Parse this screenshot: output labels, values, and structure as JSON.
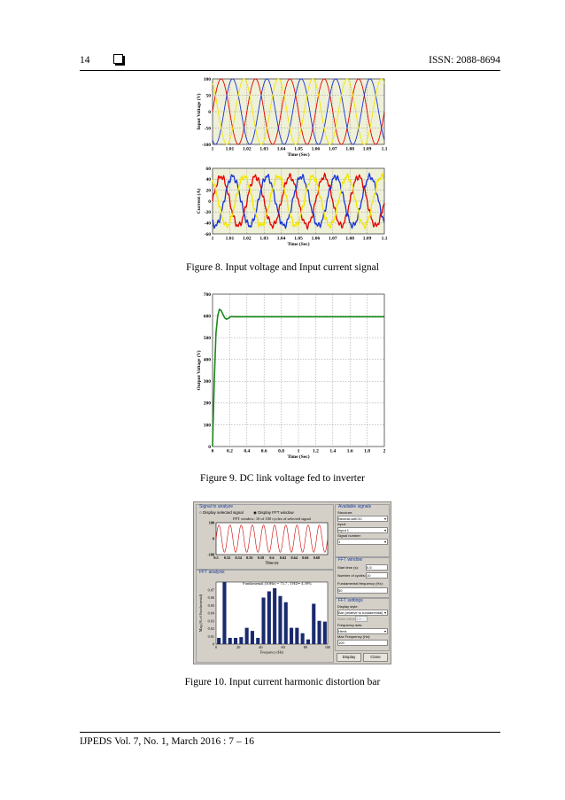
{
  "header": {
    "page_number": "14",
    "issn": "ISSN: 2088-8694"
  },
  "footer": {
    "journal": "IJPEDS Vol. 7, No. 1, March 2016 :  7 – 16"
  },
  "captions": {
    "fig8": "Figure 8. Input voltage and Input current signal",
    "fig9": "Figure  9. DC link voltage fed to inverter",
    "fig10": "Figure 10. Input current harmonic distortion bar"
  },
  "chart_data": [
    {
      "type": "line",
      "ylabel": "Input Voltage (V)",
      "xlabel": "Time (Sec)",
      "xlim": [
        1,
        1.1
      ],
      "ylim": [
        -100,
        100
      ],
      "x_ticks": [
        "1",
        "1.01",
        "1.02",
        "1.03",
        "1.04",
        "1.05",
        "1.06",
        "1.07",
        "1.08",
        "1.09",
        "1.1"
      ],
      "y_ticks": [
        "100",
        "50",
        "0",
        "-50",
        "-100"
      ],
      "frequency_hz": 50,
      "amplitude": 100,
      "series": [
        {
          "color": "#e60000",
          "phase_deg": 0
        },
        {
          "color": "#1a33d6",
          "phase_deg": -120
        },
        {
          "color": "#f2e600",
          "phase_deg": 120
        }
      ],
      "grid": true
    },
    {
      "type": "line",
      "ylabel": "Current (A)",
      "xlabel": "Time (Sec)",
      "xlim": [
        1,
        1.1
      ],
      "ylim": [
        -60,
        60
      ],
      "x_ticks": [
        "1",
        "1.01",
        "1.02",
        "1.03",
        "1.04",
        "1.05",
        "1.06",
        "1.07",
        "1.08",
        "1.09",
        "1.1"
      ],
      "y_ticks": [
        "60",
        "40",
        "20",
        "0",
        "-20",
        "-40",
        "-60"
      ],
      "frequency_hz": 50,
      "amplitude": 45,
      "series": [
        {
          "color": "#e60000",
          "phase_deg": 0
        },
        {
          "color": "#1a33d6",
          "phase_deg": -120
        },
        {
          "color": "#f2e600",
          "phase_deg": 120
        }
      ],
      "grid": true
    },
    {
      "type": "line",
      "ylabel": "Output Voltage (V)",
      "xlabel": "Time (Sec)",
      "xlim": [
        0,
        2
      ],
      "ylim": [
        0,
        700
      ],
      "x_ticks": [
        "0",
        "0.2",
        "0.4",
        "0.6",
        "0.8",
        "1",
        "1.2",
        "1.4",
        "1.6",
        "1.8",
        "2"
      ],
      "y_ticks": [
        "700",
        "600",
        "500",
        "400",
        "300",
        "200",
        "100",
        "0"
      ],
      "series": [
        {
          "color": "#1a8a1a",
          "x": [
            0,
            0.02,
            0.04,
            0.06,
            0.08,
            0.1,
            0.12,
            0.14,
            0.16,
            0.18,
            0.2,
            0.22,
            0.25,
            0.3,
            0.35,
            0.4,
            0.5,
            2.0
          ],
          "y": [
            0,
            300,
            520,
            600,
            630,
            625,
            608,
            592,
            585,
            588,
            594,
            597,
            596,
            596,
            596,
            596,
            596,
            596
          ]
        }
      ],
      "grid": true
    },
    {
      "type": "line",
      "title": "FFT window: 10 of 100 cycles of selected signal",
      "xlabel": "Time (s)",
      "xlim": [
        0.5,
        0.7
      ],
      "ylim": [
        -100,
        100
      ],
      "x_ticks": [
        "0.5",
        "0.52",
        "0.54",
        "0.56",
        "0.58",
        "0.6",
        "0.62",
        "0.64",
        "0.66",
        "0.68"
      ],
      "y_ticks": [
        "100",
        "0",
        "-100"
      ],
      "series": [
        {
          "color": "#cc0000",
          "frequency_hz": 50,
          "amplitude": 85
        }
      ]
    },
    {
      "type": "bar",
      "title": "Fundamental (50Hz) = 75.7 , THD= 4.59%",
      "xlabel": "Frequency (Hz)",
      "ylabel": "Mag (% of Fundamental)",
      "xlim": [
        0,
        100
      ],
      "ylim": [
        0,
        0.08
      ],
      "x_ticks": [
        "0",
        "20",
        "40",
        "60",
        "80",
        "100"
      ],
      "y_ticks": [
        "0.07",
        "0.06",
        "0.05",
        "0.04",
        "0.03",
        "0.02",
        "0.01",
        "0"
      ],
      "x": [
        5,
        10,
        15,
        20,
        25,
        30,
        35,
        40,
        45,
        50,
        55,
        60,
        65,
        70,
        75,
        80,
        85,
        90,
        95,
        100
      ],
      "values": [
        0.008,
        0.08,
        0.008,
        0.008,
        0.009,
        0.021,
        0.017,
        0.008,
        0.06,
        0.068,
        0.072,
        0.062,
        0.054,
        0.021,
        0.021,
        0.014,
        0.006,
        0.052,
        0.03,
        0.029
      ],
      "bar_color": "#1a2a6e"
    }
  ],
  "gui": {
    "signal_panel": "Signal to analyze",
    "radio_selected": "Display selected signal",
    "radio_fft": "Display FFT window",
    "fft_analysis": "FFT analysis",
    "available_signals": "Available signals",
    "structure_label": "Structure:",
    "structure_value": "Neutral-with'20",
    "input_label": "Input:",
    "input_value": "input 1",
    "signal_number_label": "Signal number:",
    "signal_number_value": "1",
    "fft_window_panel": "FFT window",
    "start_time_label": "Start time (s):",
    "start_time_value": "0.5",
    "cycles_label": "Number of cycles:",
    "cycles_value": "10",
    "fund_freq_label": "Fundamental frequency (Hz):",
    "fund_freq_value": "50",
    "fft_settings_panel": "FFT settings",
    "display_style_label": "Display style:",
    "display_style_value": "Bar (relative to fundamental)",
    "base_value_label": "Base value:",
    "base_value_value": "1.0",
    "freq_axis_label": "Frequency axis:",
    "freq_axis_value": "Hertz",
    "max_freq_label": "Max Frequency (Hz):",
    "max_freq_value": "100",
    "display_button": "Display",
    "close_button": "Close"
  }
}
